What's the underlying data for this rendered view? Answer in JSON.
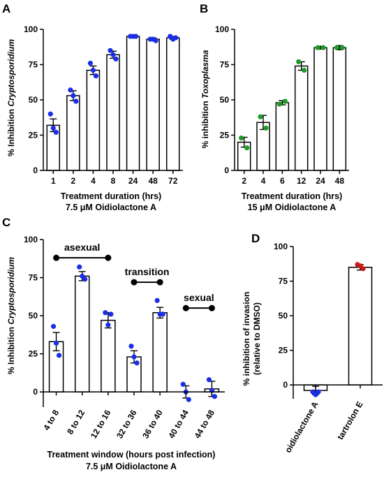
{
  "figure": {
    "panels": [
      "A",
      "B",
      "C",
      "D"
    ]
  },
  "chart_data": [
    {
      "panel": "A",
      "type": "bar",
      "ylabel_prefix": "% Inhibition",
      "ylabel_italic": "Cryptosporidium",
      "xlabel": "Treatment duration (hrs)",
      "xlabel_line2": "7.5 μM Oidiolactone A",
      "ylim": [
        0,
        100
      ],
      "yticks": [
        0,
        25,
        50,
        75,
        100
      ],
      "grid": false,
      "point_color": "#1a2ee8",
      "categories": [
        "1",
        "2",
        "4",
        "8",
        "24",
        "48",
        "72"
      ],
      "values": [
        32,
        53,
        71,
        82,
        95,
        93,
        94
      ],
      "errors": [
        4.5,
        3.5,
        3,
        2.5,
        0.8,
        1,
        1
      ],
      "points": [
        [
          40,
          30,
          27
        ],
        [
          57,
          53,
          49
        ],
        [
          76,
          71,
          67
        ],
        [
          85,
          82,
          79
        ],
        [
          95,
          95,
          95
        ],
        [
          93,
          93,
          92
        ],
        [
          95,
          93,
          94
        ]
      ]
    },
    {
      "panel": "B",
      "type": "bar",
      "ylabel_prefix": "% inhibition",
      "ylabel_italic": "Toxoplasma",
      "xlabel": "Treatment duration (hrs)",
      "xlabel_line2": "15 μM Oidiolactone A",
      "ylim": [
        0,
        100
      ],
      "yticks": [
        0,
        25,
        50,
        75,
        100
      ],
      "grid": false,
      "point_color": "#1e9a26",
      "categories": [
        "2",
        "4",
        "6",
        "12",
        "24",
        "48"
      ],
      "values": [
        20,
        34,
        48,
        74,
        87,
        87
      ],
      "errors": [
        3.5,
        5,
        1.5,
        3,
        1,
        1.5
      ],
      "points": [
        [
          23,
          16
        ],
        [
          38,
          30
        ],
        [
          47,
          49
        ],
        [
          77,
          71
        ],
        [
          87,
          87
        ],
        [
          87,
          87
        ]
      ]
    },
    {
      "panel": "C",
      "type": "bar",
      "ylabel_prefix": "% Inhibition",
      "ylabel_italic": "Cryptosporidium",
      "xlabel": "Treatment window (hours post infection)",
      "xlabel_line2": "7.5 μM Oidiolactone A",
      "ylim": [
        -10,
        100
      ],
      "yticks": [
        0,
        25,
        50,
        75,
        100
      ],
      "grid": false,
      "point_color": "#1a2ee8",
      "categories": [
        "4 to 8",
        "8 to 12",
        "12 to 16",
        "32 to 36",
        "36 to 40",
        "40 to 44",
        "44 to 48"
      ],
      "values": [
        33,
        76,
        47,
        23,
        52,
        0,
        2
      ],
      "errors": [
        6,
        3,
        5,
        4,
        3.5,
        4,
        5
      ],
      "points": [
        [
          43,
          32,
          24
        ],
        [
          82,
          76,
          74
        ],
        [
          52,
          44,
          51
        ],
        [
          30,
          23,
          19
        ],
        [
          60,
          51,
          51
        ],
        [
          5,
          0,
          -5
        ],
        [
          8,
          1,
          -3
        ]
      ],
      "annotations": [
        {
          "label": "asexual",
          "from": 0,
          "to": 2,
          "y": 88
        },
        {
          "label": "transition",
          "from": 3,
          "to": 4,
          "y": 72
        },
        {
          "label": "sexual",
          "from": 5,
          "to": 6,
          "y": 55
        }
      ]
    },
    {
      "panel": "D",
      "type": "bar",
      "ylabel": "% inhibition of invasion",
      "ylabel_line2": "(relative to DMSO)",
      "ylim": [
        -10,
        100
      ],
      "yticks": [
        0,
        25,
        50,
        75,
        100
      ],
      "grid": false,
      "categories": [
        "oidiolactone A",
        "tartrolon E"
      ],
      "values": [
        -4,
        85
      ],
      "errors": [
        3,
        2
      ],
      "point_colors": [
        "#1a2ee8",
        "#c81a1a"
      ],
      "points": [
        [
          -5,
          -7,
          -5
        ],
        [
          87,
          86,
          84
        ]
      ]
    }
  ]
}
